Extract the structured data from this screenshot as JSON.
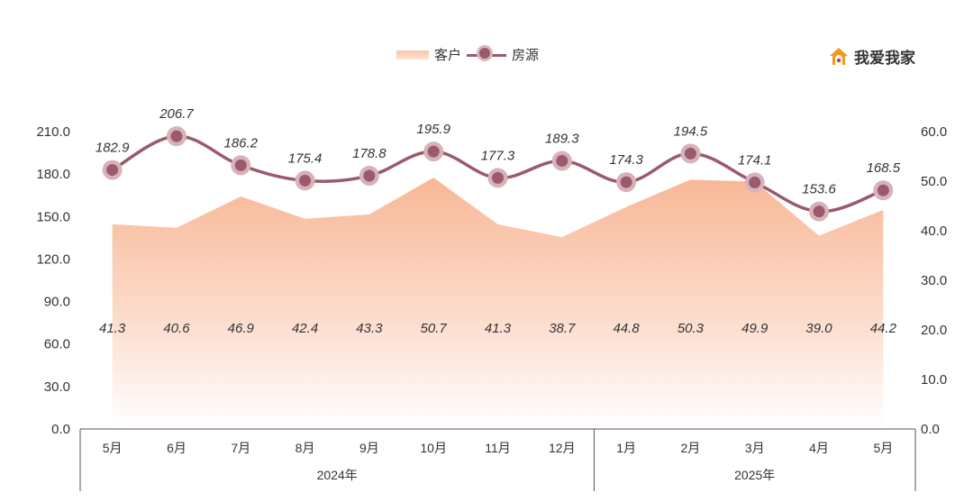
{
  "logo": {
    "text": "我爱我家"
  },
  "chart_data": {
    "type": "line",
    "categories": [
      "5月",
      "6月",
      "7月",
      "8月",
      "9月",
      "10月",
      "11月",
      "12月",
      "1月",
      "2月",
      "3月",
      "4月",
      "5月"
    ],
    "groups": [
      {
        "label": "2024年",
        "start": 0,
        "end": 7
      },
      {
        "label": "2025年",
        "start": 8,
        "end": 12
      }
    ],
    "series": [
      {
        "name": "客户",
        "type": "area",
        "axis": "right",
        "values": [
          41.3,
          40.6,
          46.9,
          42.4,
          43.3,
          50.7,
          41.3,
          38.7,
          44.8,
          50.3,
          49.9,
          39.0,
          44.2
        ],
        "labels": [
          "41.3",
          "40.6",
          "46.9",
          "42.4",
          "43.3",
          "50.7",
          "41.3",
          "38.7",
          "44.8",
          "50.3",
          "49.9",
          "39.0",
          "44.2"
        ],
        "color": "#f9c6aa"
      },
      {
        "name": "房源",
        "type": "line",
        "axis": "left",
        "values": [
          182.9,
          206.7,
          186.2,
          175.4,
          178.8,
          195.9,
          177.3,
          189.3,
          174.3,
          194.5,
          174.1,
          153.6,
          168.5
        ],
        "labels": [
          "182.9",
          "206.7",
          "186.2",
          "175.4",
          "178.8",
          "195.9",
          "177.3",
          "189.3",
          "174.3",
          "194.5",
          "174.1",
          "153.6",
          "168.5"
        ],
        "color": "#9a5a6b"
      }
    ],
    "y_left": {
      "range": [
        0,
        210
      ],
      "ticks": [
        "0.0",
        "30.0",
        "60.0",
        "90.0",
        "120.0",
        "150.0",
        "180.0",
        "210.0"
      ]
    },
    "y_right": {
      "range": [
        0,
        60
      ],
      "ticks": [
        "0.0",
        "10.0",
        "20.0",
        "30.0",
        "40.0",
        "50.0",
        "60.0"
      ]
    },
    "legend_position": "top-center",
    "grid": false
  }
}
